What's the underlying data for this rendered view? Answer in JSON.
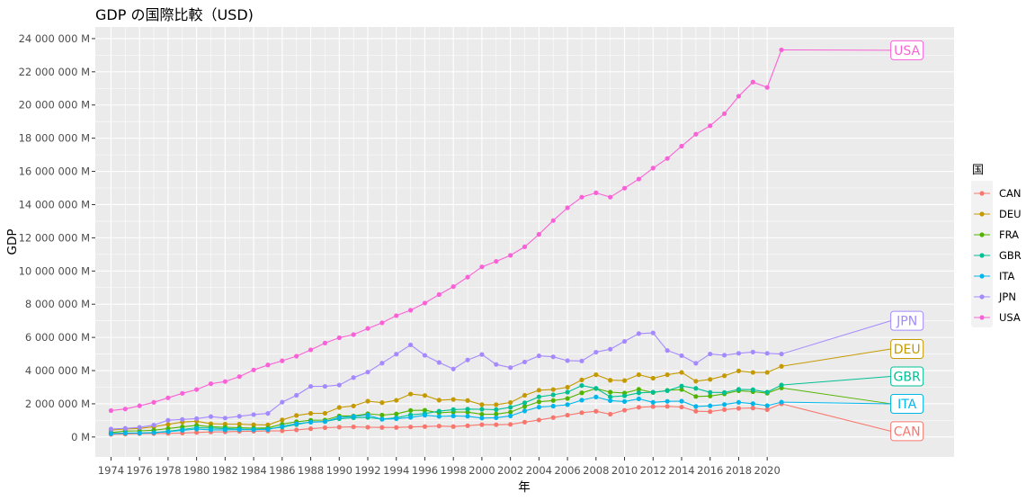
{
  "chart_data": {
    "type": "line",
    "title": "GDP の国際比較（USD)",
    "xlabel": "年",
    "ylabel": "GDP",
    "xlim": [
      1972.9,
      2033.1
    ],
    "ylim": [
      -1200000,
      24700000
    ],
    "x_ticks": [
      1974,
      1976,
      1978,
      1980,
      1982,
      1984,
      1986,
      1988,
      1990,
      1992,
      1994,
      1996,
      1998,
      2000,
      2002,
      2004,
      2006,
      2008,
      2010,
      2012,
      2014,
      2016,
      2018,
      2020
    ],
    "y_ticks": [
      0,
      2000000,
      4000000,
      6000000,
      8000000,
      10000000,
      12000000,
      14000000,
      16000000,
      18000000,
      20000000,
      22000000,
      24000000
    ],
    "y_tick_labels": [
      "0 M",
      "2 000 000 M",
      "4 000 000 M",
      "6 000 000 M",
      "8 000 000 M",
      "10 000 000 M",
      "12 000 000 M",
      "14 000 000 M",
      "16 000 000 M",
      "18 000 000 M",
      "20 000 000 M",
      "22 000 000 M",
      "24 000 000 M"
    ],
    "legend_title": "国",
    "legend_position": "right",
    "grid": true,
    "x": [
      1974,
      1975,
      1976,
      1977,
      1978,
      1979,
      1980,
      1981,
      1982,
      1983,
      1984,
      1985,
      1986,
      1987,
      1988,
      1989,
      1990,
      1991,
      1992,
      1993,
      1994,
      1995,
      1996,
      1997,
      1998,
      1999,
      2000,
      2001,
      2002,
      2003,
      2004,
      2005,
      2006,
      2007,
      2008,
      2009,
      2010,
      2011,
      2012,
      2013,
      2014,
      2015,
      2016,
      2017,
      2018,
      2019,
      2020,
      2021
    ],
    "end_label_x": 2029.8,
    "series": [
      {
        "name": "CAN",
        "color": "#F8766D",
        "end_label_y": 350000,
        "values": [
          160000,
          175000,
          205000,
          210000,
          220000,
          240000,
          275000,
          305000,
          310000,
          340000,
          350000,
          365000,
          375000,
          430000,
          500000,
          560000,
          595000,
          610000,
          590000,
          575000,
          575000,
          605000,
          630000,
          660000,
          630000,
          680000,
          745000,
          740000,
          760000,
          895000,
          1025000,
          1170000,
          1315000,
          1465000,
          1550000,
          1375000,
          1615000,
          1790000,
          1830000,
          1845000,
          1805000,
          1555000,
          1530000,
          1650000,
          1725000,
          1745000,
          1650000,
          2000000
        ]
      },
      {
        "name": "DEU",
        "color": "#C49A00",
        "end_label_y": 5300000,
        "values": [
          420000,
          480000,
          520000,
          620000,
          760000,
          900000,
          950000,
          800000,
          780000,
          780000,
          740000,
          730000,
          1030000,
          1300000,
          1420000,
          1430000,
          1780000,
          1870000,
          2160000,
          2070000,
          2210000,
          2590000,
          2500000,
          2220000,
          2260000,
          2200000,
          1950000,
          1950000,
          2080000,
          2510000,
          2820000,
          2860000,
          3000000,
          3440000,
          3750000,
          3420000,
          3400000,
          3750000,
          3540000,
          3750000,
          3890000,
          3360000,
          3470000,
          3690000,
          3980000,
          3890000,
          3890000,
          4260000
        ]
      },
      {
        "name": "FRA",
        "color": "#53B400",
        "end_label_y": 2000000,
        "values": [
          270000,
          360000,
          370000,
          410000,
          510000,
          610000,
          700000,
          620000,
          590000,
          560000,
          530000,
          550000,
          770000,
          920000,
          1010000,
          1020000,
          1270000,
          1270000,
          1400000,
          1320000,
          1390000,
          1600000,
          1610000,
          1460000,
          1510000,
          1500000,
          1370000,
          1380000,
          1500000,
          1840000,
          2120000,
          2200000,
          2320000,
          2660000,
          2920000,
          2700000,
          2650000,
          2870000,
          2680000,
          2810000,
          2860000,
          2440000,
          2470000,
          2600000,
          2790000,
          2730000,
          2640000,
          2960000
        ]
      },
      {
        "name": "GBR",
        "color": "#00C094",
        "end_label_y": 3650000,
        "values": [
          210000,
          240000,
          240000,
          270000,
          340000,
          450000,
          560000,
          540000,
          510000,
          480000,
          460000,
          490000,
          600000,
          750000,
          910000,
          930000,
          1100000,
          1160000,
          1180000,
          1080000,
          1160000,
          1330000,
          1410000,
          1560000,
          1650000,
          1680000,
          1670000,
          1650000,
          1790000,
          2060000,
          2420000,
          2540000,
          2700000,
          3100000,
          2930000,
          2420000,
          2480000,
          2660000,
          2700000,
          2790000,
          3070000,
          2930000,
          2690000,
          2680000,
          2870000,
          2850000,
          2700000,
          3130000
        ]
      },
      {
        "name": "ITA",
        "color": "#00B6EB",
        "end_label_y": 2000000,
        "values": [
          200000,
          230000,
          230000,
          260000,
          320000,
          400000,
          480000,
          430000,
          430000,
          440000,
          440000,
          450000,
          640000,
          800000,
          890000,
          930000,
          1180000,
          1240000,
          1320000,
          1070000,
          1100000,
          1180000,
          1310000,
          1240000,
          1270000,
          1250000,
          1140000,
          1160000,
          1270000,
          1570000,
          1800000,
          1860000,
          1950000,
          2220000,
          2410000,
          2190000,
          2140000,
          2300000,
          2090000,
          2150000,
          2160000,
          1840000,
          1880000,
          1960000,
          2090000,
          2010000,
          1890000,
          2100000
        ]
      },
      {
        "name": "JPN",
        "color": "#A58AFF",
        "end_label_y": 7000000,
        "values": [
          480000,
          520000,
          580000,
          720000,
          1010000,
          1060000,
          1110000,
          1230000,
          1140000,
          1250000,
          1350000,
          1420000,
          2100000,
          2510000,
          3050000,
          3050000,
          3130000,
          3580000,
          3910000,
          4450000,
          4990000,
          5550000,
          4920000,
          4490000,
          4100000,
          4640000,
          4970000,
          4370000,
          4180000,
          4520000,
          4890000,
          4830000,
          4600000,
          4580000,
          5110000,
          5290000,
          5760000,
          6230000,
          6270000,
          5210000,
          4900000,
          4440000,
          5000000,
          4930000,
          5040000,
          5120000,
          5040000,
          5000000
        ]
      },
      {
        "name": "USA",
        "color": "#FB61D7",
        "end_label_y": 23300000,
        "values": [
          1590000,
          1690000,
          1880000,
          2090000,
          2360000,
          2630000,
          2860000,
          3210000,
          3340000,
          3640000,
          4040000,
          4340000,
          4590000,
          4870000,
          5250000,
          5660000,
          5980000,
          6170000,
          6540000,
          6880000,
          7310000,
          7640000,
          8070000,
          8580000,
          9060000,
          9630000,
          10250000,
          10580000,
          10940000,
          11460000,
          12210000,
          13040000,
          13810000,
          14450000,
          14710000,
          14450000,
          14990000,
          15540000,
          16200000,
          16780000,
          17520000,
          18240000,
          18750000,
          19480000,
          20530000,
          21380000,
          21060000,
          23320000
        ]
      }
    ]
  }
}
